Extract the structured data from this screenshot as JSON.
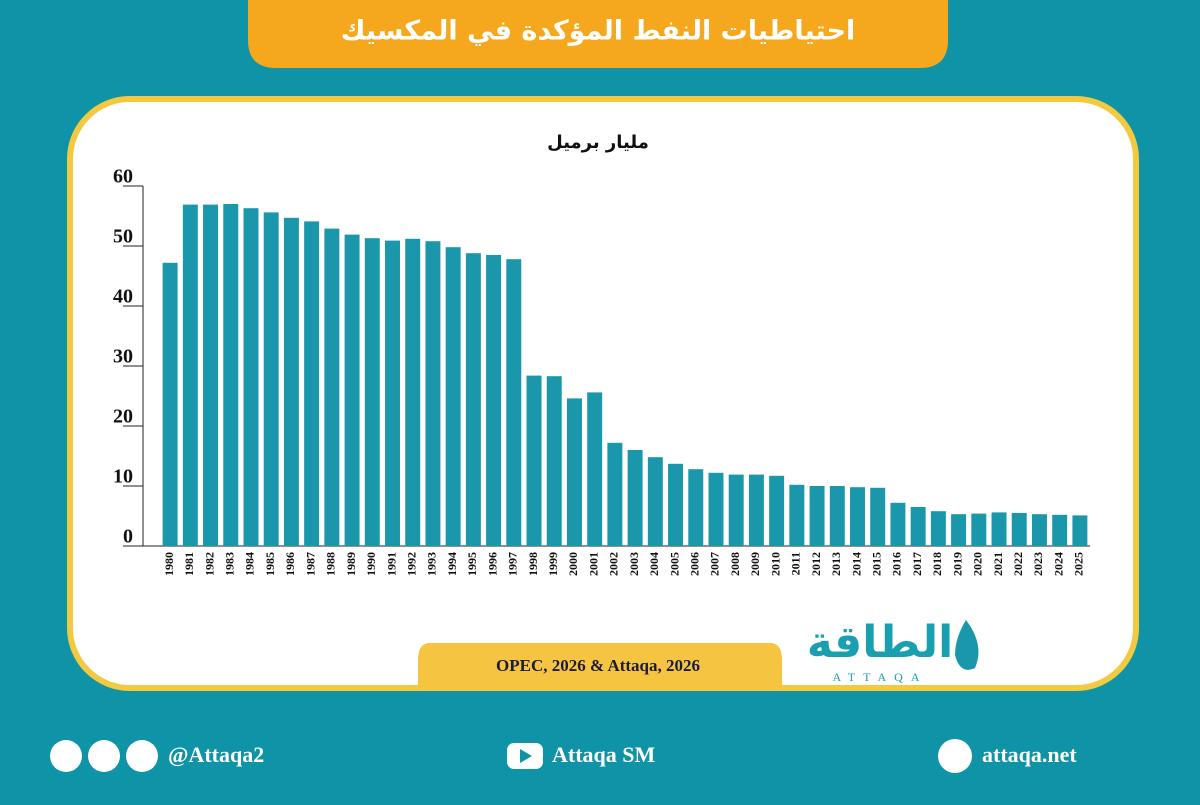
{
  "header": {
    "title": "احتياطيات النفط المؤكدة في المكسيك"
  },
  "chart_data": {
    "type": "bar",
    "y_label": "مليار برميل",
    "categories": [
      "1980",
      "1981",
      "1982",
      "1983",
      "1984",
      "1985",
      "1986",
      "1987",
      "1988",
      "1989",
      "1990",
      "1991",
      "1992",
      "1993",
      "1994",
      "1995",
      "1996",
      "1997",
      "1998",
      "1999",
      "2000",
      "2001",
      "2002",
      "2003",
      "2004",
      "2005",
      "2006",
      "2007",
      "2008",
      "2009",
      "2010",
      "2011",
      "2012",
      "2013",
      "2014",
      "2015",
      "2016",
      "2017",
      "2018",
      "2019",
      "2020",
      "2021",
      "2022",
      "2023",
      "2024",
      "2025"
    ],
    "values": [
      47.2,
      56.9,
      56.9,
      57.0,
      56.3,
      55.6,
      54.7,
      54.1,
      52.9,
      51.9,
      51.3,
      50.9,
      51.2,
      50.8,
      49.8,
      48.8,
      48.5,
      47.8,
      28.4,
      28.3,
      24.6,
      25.6,
      17.2,
      16.0,
      14.8,
      13.7,
      12.8,
      12.2,
      11.9,
      11.9,
      11.7,
      10.2,
      10.0,
      10.0,
      9.8,
      9.7,
      7.2,
      6.5,
      5.8,
      5.3,
      5.4,
      5.6,
      5.5,
      5.3,
      5.2,
      5.1
    ],
    "color": "#1a97aa",
    "ylim": [
      0,
      60
    ],
    "yticks": [
      0,
      10,
      20,
      30,
      40,
      50,
      60
    ],
    "source": "OPEC, 2026 & Attaqa, 2026"
  },
  "logo": {
    "name": "الطاقة",
    "latin": "ATTAQA"
  },
  "footer": {
    "handle": "@Attaqa2",
    "youtube": "Attaqa SM",
    "website": "attaqa.net"
  }
}
